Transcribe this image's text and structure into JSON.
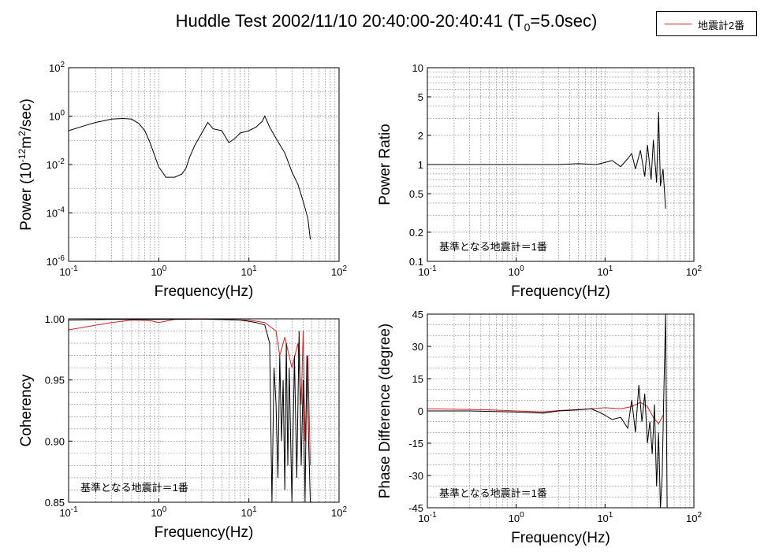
{
  "title_parts": {
    "pre": "Huddle Test  2002/11/10  20:40:00-20:40:41 (T",
    "sub": "0",
    "post": "=5.0sec)"
  },
  "legend": {
    "label": "地震計2番",
    "color": "#d42020"
  },
  "reference_color": "#000000",
  "chart_data": [
    {
      "id": "power",
      "type": "line",
      "xscale": "log",
      "yscale": "log",
      "xlim": [
        0.1,
        100
      ],
      "ylim": [
        1e-06,
        100
      ],
      "xlabel": "Frequency(Hz)",
      "ylabel_parts": {
        "pre": "Power (10",
        "sup1": "-12",
        "mid": "m",
        "sup2": "2",
        "post": "/sec)"
      },
      "grid": true,
      "xticks": [
        {
          "v": 0.1,
          "base": "10",
          "exp": "-1"
        },
        {
          "v": 1,
          "base": "10",
          "exp": "0"
        },
        {
          "v": 10,
          "base": "10",
          "exp": "1"
        },
        {
          "v": 100,
          "base": "10",
          "exp": "2"
        }
      ],
      "yticks": [
        {
          "v": 100,
          "base": "10",
          "exp": "2"
        },
        {
          "v": 1,
          "base": "10",
          "exp": "0"
        },
        {
          "v": 0.01,
          "base": "10",
          "exp": "-2"
        },
        {
          "v": 0.0001,
          "base": "10",
          "exp": "-4"
        },
        {
          "v": 1e-06,
          "base": "10",
          "exp": "-6"
        }
      ],
      "series": [
        {
          "x": [
            0.1,
            0.15,
            0.2,
            0.3,
            0.4,
            0.5,
            0.6,
            0.7,
            0.8,
            1.0,
            1.2,
            1.5,
            1.8,
            2.0,
            2.2,
            2.5,
            3.0,
            3.5,
            4.0,
            5.0,
            6.0,
            7.0,
            8.0,
            10,
            12,
            14,
            15,
            17,
            20,
            25,
            30,
            35,
            40,
            45,
            48
          ],
          "y": [
            0.25,
            0.4,
            0.55,
            0.75,
            0.8,
            0.75,
            0.5,
            0.25,
            0.08,
            0.008,
            0.003,
            0.003,
            0.004,
            0.007,
            0.02,
            0.06,
            0.2,
            0.55,
            0.3,
            0.25,
            0.08,
            0.12,
            0.2,
            0.25,
            0.35,
            0.6,
            1.0,
            0.35,
            0.12,
            0.03,
            0.005,
            0.0015,
            0.0003,
            6e-05,
            8e-06
          ]
        }
      ]
    },
    {
      "id": "ratio",
      "type": "line",
      "xscale": "log",
      "yscale": "log",
      "xlim": [
        0.1,
        100
      ],
      "ylim": [
        0.1,
        10
      ],
      "xlabel": "Frequency(Hz)",
      "ylabel": "Power Ratio",
      "annotation": "基準となる地震計＝1番",
      "grid": true,
      "xticks": [
        {
          "v": 0.1,
          "base": "10",
          "exp": "-1"
        },
        {
          "v": 1,
          "base": "10",
          "exp": "0"
        },
        {
          "v": 10,
          "base": "10",
          "exp": "1"
        },
        {
          "v": 100,
          "base": "10",
          "exp": "2"
        }
      ],
      "yticks": [
        {
          "v": 10,
          "label": "10"
        },
        {
          "v": 5,
          "label": "5"
        },
        {
          "v": 2,
          "label": "2"
        },
        {
          "v": 1,
          "label": "1"
        },
        {
          "v": 0.5,
          "label": "0.5"
        },
        {
          "v": 0.2,
          "label": "0.2"
        },
        {
          "v": 0.1,
          "label": "0.1"
        }
      ],
      "series": [
        {
          "x": [
            0.1,
            0.3,
            1,
            3,
            5,
            8,
            10,
            12,
            15,
            18,
            20,
            22,
            25,
            28,
            30,
            33,
            35,
            38,
            40,
            42,
            45,
            48
          ],
          "y": [
            1.0,
            1.0,
            1.0,
            1.0,
            1.02,
            1.0,
            1.05,
            1.1,
            0.95,
            1.15,
            1.3,
            0.9,
            1.4,
            0.75,
            1.6,
            0.7,
            1.8,
            0.65,
            3.5,
            0.6,
            0.9,
            0.35
          ]
        }
      ]
    },
    {
      "id": "coherency",
      "type": "line",
      "xscale": "log",
      "yscale": "linear",
      "xlim": [
        0.1,
        100
      ],
      "ylim": [
        0.85,
        1.0
      ],
      "xlabel": "Frequency(Hz)",
      "ylabel": "Coherency",
      "annotation": "基準となる地震計＝1番",
      "grid": true,
      "xticks": [
        {
          "v": 0.1,
          "base": "10",
          "exp": "-1"
        },
        {
          "v": 1,
          "base": "10",
          "exp": "0"
        },
        {
          "v": 10,
          "base": "10",
          "exp": "1"
        },
        {
          "v": 100,
          "base": "10",
          "exp": "2"
        }
      ],
      "yticks": [
        {
          "v": 1.0,
          "label": "1.00"
        },
        {
          "v": 0.95,
          "label": "0.95"
        },
        {
          "v": 0.9,
          "label": "0.90"
        },
        {
          "v": 0.85,
          "label": "0.85"
        }
      ],
      "series": [
        {
          "x": [
            0.1,
            0.3,
            1,
            3,
            5,
            8,
            10,
            12,
            15,
            17,
            18,
            19,
            20,
            21,
            22,
            23,
            24,
            25,
            26,
            27,
            28,
            30,
            32,
            34,
            36,
            38,
            40,
            42,
            44,
            46,
            48
          ],
          "y": [
            0.999,
            0.9995,
            0.9995,
            0.9998,
            0.9995,
            0.999,
            0.998,
            0.997,
            0.995,
            0.98,
            0.85,
            0.96,
            0.93,
            0.87,
            0.97,
            0.9,
            0.95,
            0.86,
            0.98,
            0.88,
            0.96,
            0.85,
            0.97,
            0.87,
            0.99,
            0.88,
            0.95,
            0.85,
            0.97,
            0.9,
            0.85
          ]
        },
        {
          "x": [
            0.1,
            0.3,
            0.5,
            0.8,
            1.0,
            1.5,
            3,
            10,
            15,
            20,
            22,
            25,
            30,
            35,
            38,
            40,
            42,
            45,
            48
          ],
          "y": [
            0.991,
            0.997,
            0.999,
            0.9985,
            0.997,
            0.9995,
            0.9997,
            0.999,
            0.997,
            0.99,
            0.97,
            0.985,
            0.96,
            0.98,
            0.93,
            0.99,
            0.9,
            0.97,
            0.88
          ]
        }
      ]
    },
    {
      "id": "phase",
      "type": "line",
      "xscale": "log",
      "yscale": "linear",
      "xlim": [
        0.1,
        100
      ],
      "ylim": [
        -45,
        45
      ],
      "xlabel": "Frequency(Hz)",
      "ylabel": "Phase Difference (degree)",
      "annotation": "基準となる地震計＝1番",
      "grid": true,
      "xticks": [
        {
          "v": 0.1,
          "base": "10",
          "exp": "-1"
        },
        {
          "v": 1,
          "base": "10",
          "exp": "0"
        },
        {
          "v": 10,
          "base": "10",
          "exp": "1"
        },
        {
          "v": 100,
          "base": "10",
          "exp": "2"
        }
      ],
      "yticks": [
        {
          "v": 45,
          "label": "45"
        },
        {
          "v": 30,
          "label": "30"
        },
        {
          "v": 15,
          "label": "15"
        },
        {
          "v": 0,
          "label": "0"
        },
        {
          "v": -15,
          "label": "-15"
        },
        {
          "v": -30,
          "label": "-30"
        },
        {
          "v": -45,
          "label": "-45"
        }
      ],
      "series": [
        {
          "x": [
            0.1,
            0.3,
            1,
            2,
            3,
            5,
            7,
            9,
            10,
            12,
            15,
            18,
            20,
            22,
            24,
            26,
            28,
            30,
            32,
            34,
            36,
            38,
            40,
            42,
            44,
            46,
            48,
            50
          ],
          "y": [
            0,
            0,
            -0.5,
            -1,
            0,
            0.5,
            1,
            -1,
            -2,
            -4,
            -3,
            -8,
            5,
            -10,
            12,
            -5,
            8,
            -15,
            -5,
            -20,
            3,
            -35,
            -10,
            -45,
            -30,
            10,
            45,
            -45
          ]
        },
        {
          "x": [
            0.1,
            0.5,
            1,
            2,
            3,
            6,
            10,
            15,
            20,
            25,
            30,
            35,
            40,
            45
          ],
          "y": [
            1,
            0.5,
            0,
            -0.5,
            0.2,
            0.8,
            1.5,
            1,
            2,
            4,
            2,
            -3,
            -6,
            -2
          ]
        }
      ]
    }
  ]
}
